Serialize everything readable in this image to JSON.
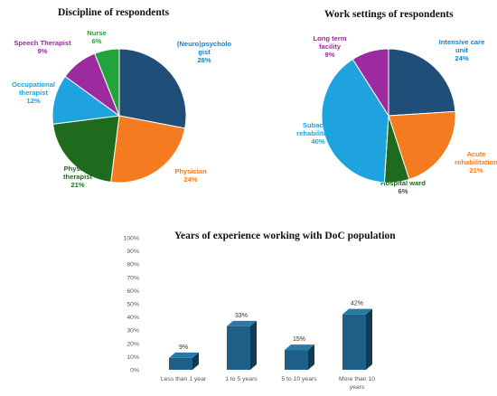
{
  "colors": {
    "neuro": "#1f4e79",
    "orange": "#f47b20",
    "green": "#1e6b1e",
    "blue": "#1ea3de",
    "purple": "#9b2b9e",
    "nurse_green": "#22a33c",
    "bar": "#1d5f86",
    "bar_top": "#2a7aa8",
    "bar_side": "#0e3a55"
  },
  "chart_data": [
    {
      "type": "pie",
      "title": "Discipline of respondents",
      "slices": [
        {
          "label": "(Neuro)psycholo gist",
          "label_lines": [
            "(Neuro)psycholo",
            "gist"
          ],
          "percent_label": "28%",
          "value": 28,
          "color_key": "neuro"
        },
        {
          "label": "Physician",
          "label_lines": [
            "Physician"
          ],
          "percent_label": "24%",
          "value": 24,
          "color_key": "orange"
        },
        {
          "label": "Physical therapist",
          "label_lines": [
            "Physical",
            "therapist"
          ],
          "percent_label": "21%",
          "value": 21,
          "color_key": "green"
        },
        {
          "label": "Occupational therapist",
          "label_lines": [
            "Occupational",
            "therapist"
          ],
          "percent_label": "12%",
          "value": 12,
          "color_key": "blue"
        },
        {
          "label": "Speech Therapist",
          "label_lines": [
            "Speech Therapist"
          ],
          "percent_label": "9%",
          "value": 9,
          "color_key": "purple"
        },
        {
          "label": "Nurse",
          "label_lines": [
            "Nurse"
          ],
          "percent_label": "6%",
          "value": 6,
          "color_key": "nurse_green"
        }
      ]
    },
    {
      "type": "pie",
      "title": "Work settings of respondents",
      "slices": [
        {
          "label": "Intensive care unit",
          "label_lines": [
            "Intensive care",
            "unit"
          ],
          "percent_label": "24%",
          "value": 24,
          "color_key": "neuro"
        },
        {
          "label": "Acute rehabilitation",
          "label_lines": [
            "Acute",
            "rehabilitation"
          ],
          "percent_label": "21%",
          "value": 21,
          "color_key": "orange"
        },
        {
          "label": "Hospital ward",
          "label_lines": [
            "Hospital ward"
          ],
          "percent_label": "6%",
          "value": 6,
          "color_key": "green"
        },
        {
          "label": "Subacute rehabilitation",
          "label_lines": [
            "Subacute",
            "rehabilitation"
          ],
          "percent_label": "40%",
          "value": 40,
          "color_key": "blue"
        },
        {
          "label": "Long term facility",
          "label_lines": [
            "Long term",
            "facility"
          ],
          "percent_label": "9%",
          "value": 9,
          "color_key": "purple"
        }
      ]
    },
    {
      "type": "bar",
      "title": "Years of experience working with DoC population",
      "categories": [
        "Less than 1 year",
        "1 to 5 years",
        "5 to 10 years",
        "More than 10 years"
      ],
      "category_lines": [
        [
          "Less than 1 year"
        ],
        [
          "1 to 5 years"
        ],
        [
          "5 to 10 years"
        ],
        [
          "More than 10",
          "years"
        ]
      ],
      "values": [
        9,
        33,
        15,
        42
      ],
      "value_labels": [
        "9%",
        "33%",
        "15%",
        "42%"
      ],
      "ylim": [
        0,
        100
      ],
      "yticks": [
        "0%",
        "10%",
        "20%",
        "30%",
        "40%",
        "50%",
        "60%",
        "70%",
        "80%",
        "90%",
        "100%"
      ],
      "grid": false
    }
  ]
}
